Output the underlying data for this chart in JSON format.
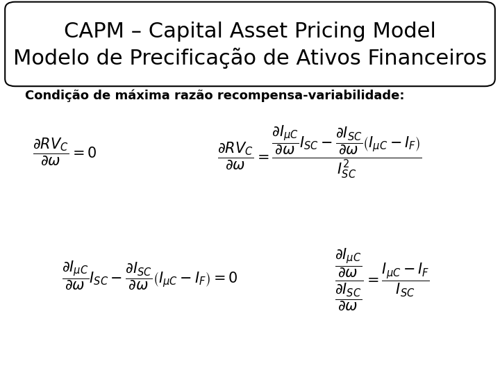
{
  "title_line1": "CAPM – Capital Asset Pricing Model",
  "title_line2": "Modelo de Precificação de Ativos Financeiros",
  "subtitle": "Condição de máxima razão recompensa-variabilidade:",
  "bg_color": "#ffffff",
  "border_color": "#000000",
  "title_fontsize": 22,
  "subtitle_fontsize": 13,
  "formula_fontsize": 15,
  "eq1": "$\\dfrac{\\partial RV_C}{\\partial \\omega} = 0$",
  "eq2": "$\\dfrac{\\partial RV_C}{\\partial \\omega} = \\dfrac{\\dfrac{\\partial I_{\\mu C}}{\\partial \\omega} I_{SC} - \\dfrac{\\partial I_{SC}}{\\partial \\omega}\\left(I_{\\mu C} - I_F\\right)}{I_{SC}^2}$",
  "eq3": "$\\dfrac{\\partial I_{\\mu C}}{\\partial \\omega} I_{SC} - \\dfrac{\\partial I_{SC}}{\\partial \\omega}\\left(I_{\\mu C} - I_F\\right) = 0$",
  "eq4": "$\\dfrac{\\dfrac{\\partial I_{\\mu C}}{\\partial \\omega}}{\\dfrac{\\partial I_{SC}}{\\partial \\omega}} = \\dfrac{I_{\\mu C} - I_F}{I_{SC}}$"
}
